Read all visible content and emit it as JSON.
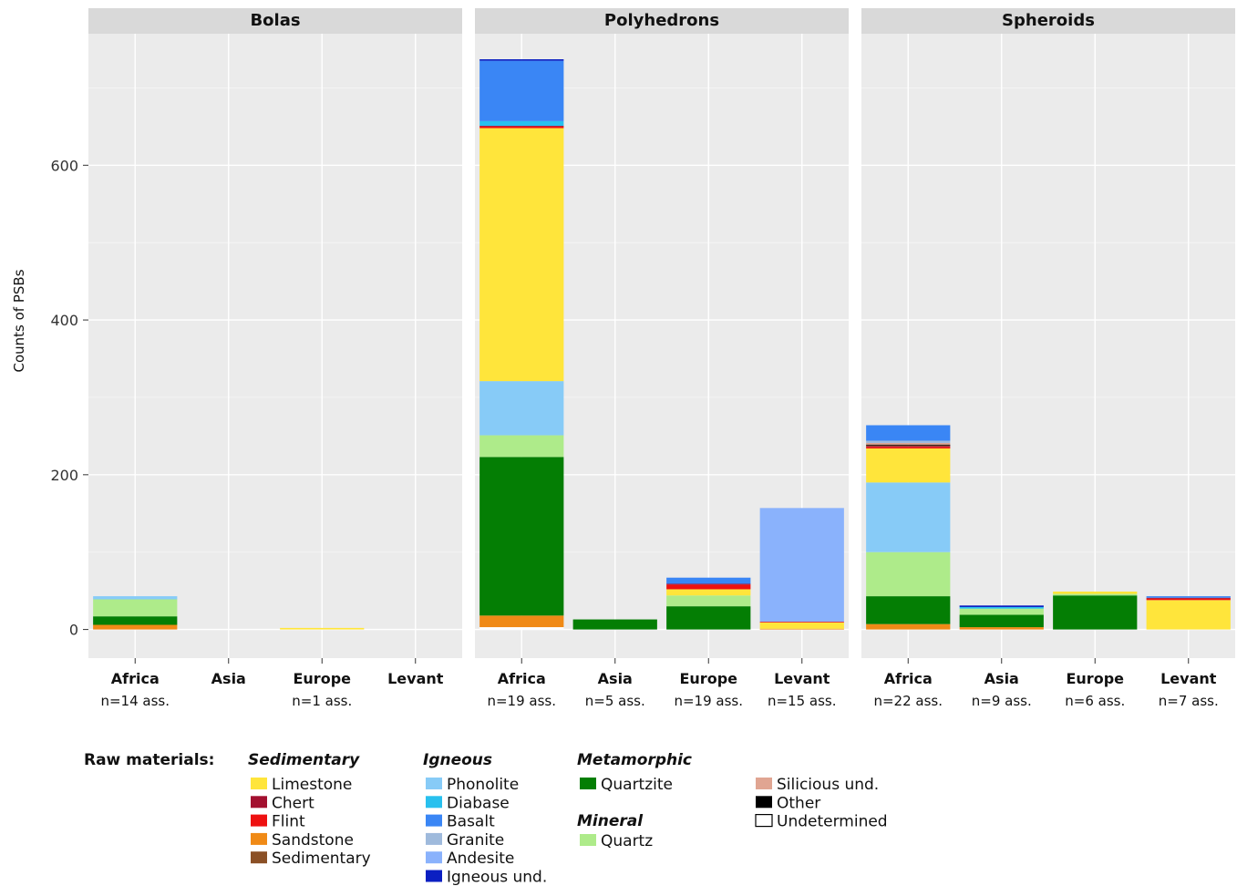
{
  "chart_data": {
    "type": "bar",
    "stacked": true,
    "ylabel": "Counts of PSBs",
    "y_ticks": [
      0,
      200,
      400,
      600
    ],
    "ylim": [
      -37,
      770
    ],
    "categories": [
      "Africa",
      "Asia",
      "Europe",
      "Levant"
    ],
    "stack_order": [
      "Undetermined",
      "Sandstone",
      "Quartzite",
      "Quartz",
      "Phonolite",
      "Limestone",
      "Flint",
      "Chert",
      "Sedimentary",
      "Other",
      "Silicious und.",
      "Granite",
      "Diabase",
      "Andesite",
      "Basalt",
      "Igneous und."
    ],
    "colors": {
      "Limestone": "#FFE53B",
      "Chert": "#A3102F",
      "Flint": "#EE1111",
      "Sandstone": "#F08A16",
      "Sedimentary": "#8B5026",
      "Phonolite": "#87CBF7",
      "Diabase": "#28C0EE",
      "Basalt": "#3A86F5",
      "Granite": "#9FBADC",
      "Andesite": "#8AB2FC",
      "Igneous und.": "#0B1FC2",
      "Quartzite": "#047E04",
      "Quartz": "#AEEB8A",
      "Silicious und.": "#E0A592",
      "Other": "#000000",
      "Undetermined": "#FFFFFF"
    },
    "panels": [
      {
        "title": "Bolas",
        "n_labels": [
          "n=14 ass.",
          "",
          "n=1 ass.",
          ""
        ],
        "bars": [
          {
            "Sandstone": 6,
            "Quartzite": 11,
            "Quartz": 22,
            "Phonolite": 4
          },
          {},
          {
            "Limestone": 2
          },
          {}
        ]
      },
      {
        "title": "Polyhedrons",
        "n_labels": [
          "n=19 ass.",
          "n=5 ass.",
          "n=19 ass.",
          "n=15 ass."
        ],
        "bars": [
          {
            "Undetermined": 3,
            "Sandstone": 15,
            "Quartzite": 205,
            "Quartz": 28,
            "Phonolite": 70,
            "Limestone": 327,
            "Flint": 2,
            "Chert": 1,
            "Diabase": 6,
            "Basalt": 78,
            "Igneous und.": 2
          },
          {
            "Quartzite": 13
          },
          {
            "Quartzite": 30,
            "Quartz": 14,
            "Limestone": 8,
            "Flint": 6,
            "Chert": 1,
            "Basalt": 8
          },
          {
            "Limestone": 8,
            "Sandstone": 1,
            "Flint": 1,
            "Andesite": 147
          }
        ]
      },
      {
        "title": "Spheroids",
        "n_labels": [
          "n=22 ass.",
          "n=9 ass.",
          "n=6 ass.",
          "n=7 ass."
        ],
        "bars": [
          {
            "Sandstone": 7,
            "Quartzite": 36,
            "Quartz": 57,
            "Phonolite": 90,
            "Limestone": 44,
            "Flint": 2,
            "Chert": 1,
            "Sedimentary": 1,
            "Other": 1,
            "Silicious und.": 2,
            "Granite": 3,
            "Basalt": 20
          },
          {
            "Sandstone": 3,
            "Quartzite": 16,
            "Quartz": 8,
            "Diabase": 2,
            "Igneous und.": 2
          },
          {
            "Quartzite": 44,
            "Quartz": 2,
            "Limestone": 3
          },
          {
            "Limestone": 38,
            "Flint": 2,
            "Chert": 1,
            "Basalt": 2
          }
        ]
      }
    ]
  },
  "legend": {
    "title": "Raw materials:",
    "groups": [
      {
        "name": "Sedimentary",
        "items": [
          "Limestone",
          "Chert",
          "Flint",
          "Sandstone",
          "Sedimentary"
        ]
      },
      {
        "name": "Igneous",
        "items": [
          "Phonolite",
          "Diabase",
          "Basalt",
          "Granite",
          "Andesite",
          "Igneous und."
        ]
      },
      {
        "name": "Metamorphic",
        "items": [
          "Quartzite"
        ]
      },
      {
        "name": "Mineral",
        "items": [
          "Quartz"
        ]
      },
      {
        "name": "",
        "items": [
          "Silicious und.",
          "Other",
          "Undetermined"
        ]
      }
    ]
  }
}
